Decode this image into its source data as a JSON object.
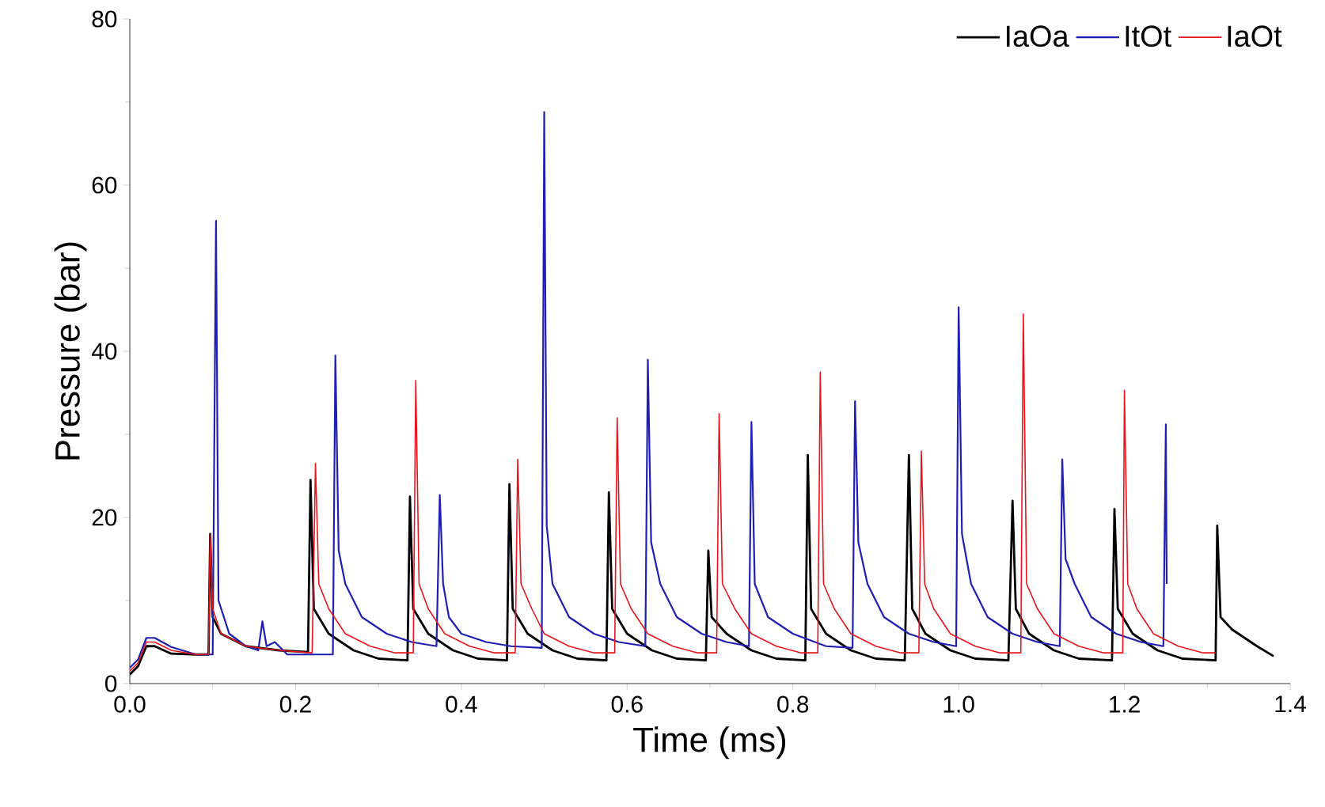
{
  "chart_data": {
    "type": "line",
    "xlabel": "Time (ms)",
    "ylabel": "Pressure (bar)",
    "xlim": [
      0,
      1.4
    ],
    "ylim": [
      0,
      80
    ],
    "xticks": [
      {
        "value": 0,
        "label": "0.0"
      },
      {
        "value": 0.2,
        "label": "0.2"
      },
      {
        "value": 0.4,
        "label": "0.4"
      },
      {
        "value": 0.6,
        "label": "0.6"
      },
      {
        "value": 0.8,
        "label": "0.8"
      },
      {
        "value": 1.0,
        "label": "1.0"
      },
      {
        "value": 1.2,
        "label": "1.2"
      },
      {
        "value": 1.4,
        "label": "1.4"
      }
    ],
    "yticks": [
      0,
      20,
      40,
      60,
      80
    ],
    "legend": "top right",
    "grid": false,
    "series": [
      {
        "name": "IaOa",
        "color": "#000000",
        "x": [
          0,
          0.01,
          0.02,
          0.03,
          0.05,
          0.08,
          0.095,
          0.097,
          0.1,
          0.11,
          0.14,
          0.18,
          0.215,
          0.218,
          0.222,
          0.24,
          0.27,
          0.3,
          0.335,
          0.338,
          0.342,
          0.36,
          0.39,
          0.42,
          0.455,
          0.458,
          0.462,
          0.48,
          0.51,
          0.54,
          0.575,
          0.578,
          0.582,
          0.6,
          0.63,
          0.66,
          0.695,
          0.698,
          0.702,
          0.72,
          0.75,
          0.78,
          0.815,
          0.818,
          0.822,
          0.84,
          0.87,
          0.9,
          0.935,
          0.94,
          0.944,
          0.96,
          0.99,
          1.02,
          1.06,
          1.065,
          1.069,
          1.085,
          1.115,
          1.145,
          1.185,
          1.188,
          1.192,
          1.21,
          1.24,
          1.27,
          1.31,
          1.312,
          1.316,
          1.33,
          1.36,
          1.38
        ],
        "values": [
          1.1,
          2.1,
          4.5,
          4.5,
          3.6,
          3.5,
          3.5,
          18,
          8,
          6,
          4.5,
          4,
          3.8,
          24.5,
          9,
          6,
          4,
          3,
          2.8,
          22.5,
          9,
          6,
          4,
          3,
          2.8,
          24,
          9,
          6,
          4,
          3,
          2.8,
          23,
          9,
          6,
          4,
          3,
          2.8,
          16,
          8,
          6,
          4,
          3,
          2.8,
          27.5,
          9,
          6,
          4,
          3,
          2.8,
          27.5,
          9,
          6,
          4,
          3,
          2.8,
          22,
          9,
          6,
          4,
          3,
          2.8,
          21,
          9,
          6,
          4,
          3,
          2.8,
          19,
          8,
          6.5,
          4.5,
          3.3
        ]
      },
      {
        "name": "ItOt",
        "color": "#1f1fb4",
        "x": [
          0,
          0.01,
          0.02,
          0.03,
          0.05,
          0.08,
          0.1,
          0.104,
          0.107,
          0.12,
          0.14,
          0.155,
          0.16,
          0.165,
          0.175,
          0.19,
          0.245,
          0.248,
          0.252,
          0.26,
          0.28,
          0.31,
          0.34,
          0.37,
          0.374,
          0.378,
          0.385,
          0.4,
          0.43,
          0.46,
          0.497,
          0.5,
          0.503,
          0.51,
          0.53,
          0.56,
          0.59,
          0.622,
          0.625,
          0.629,
          0.64,
          0.66,
          0.69,
          0.72,
          0.747,
          0.75,
          0.754,
          0.77,
          0.8,
          0.84,
          0.872,
          0.875,
          0.879,
          0.89,
          0.91,
          0.94,
          0.97,
          0.997,
          1.0,
          1.004,
          1.015,
          1.035,
          1.065,
          1.095,
          1.122,
          1.125,
          1.129,
          1.14,
          1.16,
          1.19,
          1.22,
          1.247,
          1.25,
          1.251
        ],
        "values": [
          1.9,
          2.9,
          5.5,
          5.5,
          4.4,
          3.5,
          3.5,
          55.7,
          10,
          6,
          4.5,
          4,
          7.5,
          4.5,
          5,
          3.5,
          3.5,
          39.5,
          16,
          12,
          8,
          6,
          5,
          4.5,
          22.7,
          12,
          8,
          6,
          5,
          4.5,
          4.3,
          68.8,
          19,
          12,
          8,
          6,
          5,
          4.5,
          39,
          17,
          12,
          8,
          6,
          5,
          4.5,
          31.5,
          12,
          8,
          6,
          4.5,
          4.3,
          34,
          17,
          12,
          8,
          6,
          5,
          4.5,
          45.3,
          18,
          12,
          8,
          6,
          5,
          4.5,
          27,
          15,
          12,
          8,
          6,
          5,
          4.5,
          31.2,
          12
        ]
      },
      {
        "name": "IaOt",
        "color": "#e8141b",
        "x": [
          0,
          0.01,
          0.02,
          0.03,
          0.05,
          0.08,
          0.095,
          0.097,
          0.1,
          0.11,
          0.14,
          0.18,
          0.22,
          0.224,
          0.228,
          0.24,
          0.26,
          0.29,
          0.32,
          0.342,
          0.345,
          0.349,
          0.36,
          0.38,
          0.41,
          0.44,
          0.465,
          0.468,
          0.472,
          0.485,
          0.5,
          0.53,
          0.56,
          0.585,
          0.588,
          0.592,
          0.605,
          0.625,
          0.655,
          0.685,
          0.708,
          0.711,
          0.715,
          0.73,
          0.75,
          0.78,
          0.81,
          0.83,
          0.833,
          0.837,
          0.85,
          0.87,
          0.9,
          0.93,
          0.952,
          0.955,
          0.959,
          0.97,
          0.99,
          1.02,
          1.05,
          1.075,
          1.078,
          1.082,
          1.095,
          1.115,
          1.145,
          1.175,
          1.198,
          1.2,
          1.204,
          1.215,
          1.235,
          1.265,
          1.295,
          1.31
        ],
        "values": [
          1.5,
          2.5,
          5,
          5,
          4,
          3.5,
          3.5,
          18,
          9,
          6,
          4.5,
          4,
          3.7,
          26.5,
          12,
          9,
          6,
          4.5,
          3.7,
          3.7,
          36.5,
          12,
          9,
          6,
          4.5,
          3.7,
          3.7,
          27,
          12,
          9,
          6,
          4.5,
          3.7,
          3.7,
          32,
          12,
          9,
          6,
          4.5,
          3.7,
          3.7,
          32.5,
          12,
          9,
          6,
          4.5,
          3.7,
          3.7,
          37.5,
          12,
          9,
          6,
          4.5,
          3.7,
          3.7,
          28,
          12,
          9,
          6,
          4.5,
          3.7,
          3.7,
          44.5,
          12,
          9,
          6,
          4.5,
          3.7,
          3.7,
          35.3,
          12,
          9,
          6,
          4.5,
          3.7,
          3.7
        ]
      }
    ]
  }
}
